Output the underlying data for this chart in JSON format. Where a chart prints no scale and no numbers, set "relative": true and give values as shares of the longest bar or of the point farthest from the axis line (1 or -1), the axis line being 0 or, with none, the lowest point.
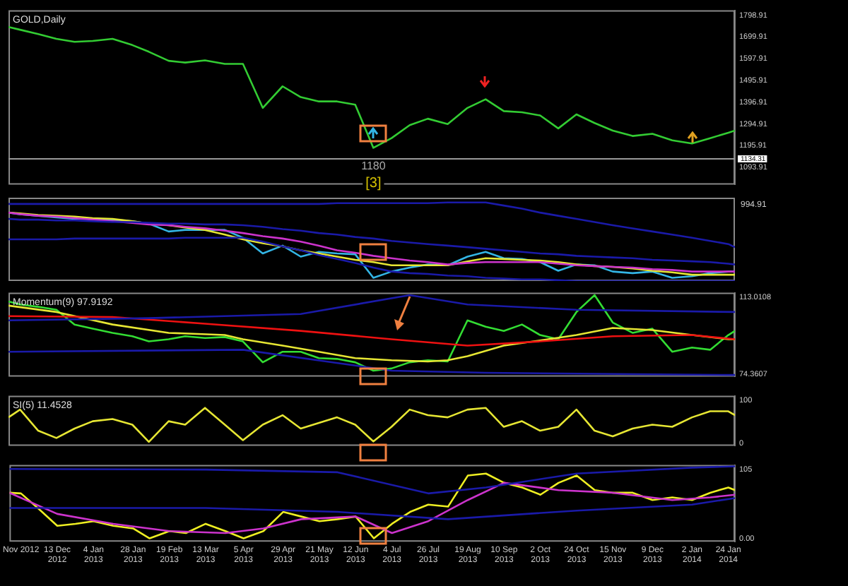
{
  "chart_data": [
    {
      "type": "line",
      "title": "GOLD,Daily",
      "x": [
        "2012-11-14",
        "2012-11-21",
        "2012-12-02",
        "2012-12-13",
        "2012-12-24",
        "2013-01-04",
        "2013-01-16",
        "2013-01-28",
        "2013-02-07",
        "2013-02-19",
        "2013-03-01",
        "2013-03-13",
        "2013-03-25",
        "2013-04-05",
        "2013-04-17",
        "2013-04-29",
        "2013-05-10",
        "2013-05-21",
        "2013-06-01",
        "2013-06-12",
        "2013-06-23",
        "2013-07-04",
        "2013-07-15",
        "2013-07-26",
        "2013-08-07",
        "2013-08-19",
        "2013-08-30",
        "2013-09-10",
        "2013-09-21",
        "2013-10-02",
        "2013-10-13",
        "2013-10-24",
        "2013-11-04",
        "2013-11-15",
        "2013-11-27",
        "2013-12-09",
        "2013-12-21",
        "2014-01-02",
        "2014-01-13",
        "2014-01-24",
        "2014-01-28"
      ],
      "series": [
        {
          "color": "#33cc33",
          "values": [
            1745,
            1732,
            1712,
            1690,
            1676,
            1680,
            1690,
            1661,
            1630,
            1588,
            1580,
            1590,
            1574,
            1574,
            1370,
            1470,
            1420,
            1400,
            1400,
            1385,
            1185,
            1230,
            1290,
            1320,
            1295,
            1370,
            1410,
            1355,
            1350,
            1335,
            1275,
            1340,
            1300,
            1265,
            1240,
            1250,
            1220,
            1205,
            1230,
            1255,
            1265
          ]
        }
      ],
      "xlim": [
        "2012-11-14",
        "2014-01-28"
      ],
      "ylim": [
        1015,
        1822
      ],
      "yticks": [
        1798.91,
        1699.91,
        1597.91,
        1495.91,
        1396.91,
        1294.91,
        1195.91,
        1093.91
      ],
      "ref_lines": [
        {
          "axis": "y",
          "value": 1134.31,
          "label": "1134.31"
        }
      ],
      "annotations": [
        "1180",
        "[3]"
      ],
      "tick_labels": "y",
      "marker": "none",
      "grid": false,
      "legend": false
    },
    {
      "type": "line",
      "relative": true,
      "annotations": [
        "994.91"
      ],
      "x": [
        "2012-11-14",
        "2012-11-21",
        "2012-12-02",
        "2012-12-13",
        "2012-12-24",
        "2013-01-04",
        "2013-01-16",
        "2013-01-28",
        "2013-02-07",
        "2013-02-19",
        "2013-03-01",
        "2013-03-13",
        "2013-03-25",
        "2013-04-05",
        "2013-04-17",
        "2013-04-29",
        "2013-05-10",
        "2013-05-21",
        "2013-06-01",
        "2013-06-12",
        "2013-06-23",
        "2013-07-04",
        "2013-07-15",
        "2013-07-26",
        "2013-08-07",
        "2013-08-19",
        "2013-08-30",
        "2013-09-10",
        "2013-09-21",
        "2013-10-02",
        "2013-10-13",
        "2013-10-24",
        "2013-11-04",
        "2013-11-15",
        "2013-11-27",
        "2013-12-09",
        "2013-12-21",
        "2014-01-02",
        "2014-01-13",
        "2014-01-24",
        "2014-01-28"
      ],
      "series": [
        {
          "color": "#1a1aa8",
          "values": [
            0.98,
            0.98,
            0.98,
            0.98,
            0.98,
            0.98,
            0.98,
            0.98,
            0.98,
            0.98,
            0.98,
            0.98,
            0.98,
            0.98,
            0.98,
            0.98,
            0.98,
            0.98,
            0.99,
            0.99,
            0.99,
            0.99,
            0.99,
            0.99,
            1,
            1,
            1,
            0.96,
            0.92,
            0.87,
            0.83,
            0.79,
            0.75,
            0.71,
            0.67,
            0.63,
            0.59,
            0.55,
            0.51,
            0.47,
            0.43
          ]
        },
        {
          "color": "#1a1aa8",
          "values": [
            0.79,
            0.78,
            0.78,
            0.77,
            0.77,
            0.76,
            0.75,
            0.75,
            0.74,
            0.73,
            0.73,
            0.72,
            0.72,
            0.71,
            0.69,
            0.66,
            0.64,
            0.61,
            0.59,
            0.56,
            0.54,
            0.51,
            0.49,
            0.47,
            0.45,
            0.43,
            0.41,
            0.39,
            0.37,
            0.35,
            0.34,
            0.32,
            0.31,
            0.3,
            0.29,
            0.27,
            0.26,
            0.25,
            0.24,
            0.22,
            0.21
          ]
        },
        {
          "color": "#1a1aa8",
          "values": [
            0.53,
            0.53,
            0.53,
            0.53,
            0.54,
            0.54,
            0.54,
            0.54,
            0.54,
            0.54,
            0.55,
            0.55,
            0.55,
            0.55,
            0.5,
            0.44,
            0.39,
            0.33,
            0.28,
            0.23,
            0.17,
            0.12,
            0.1,
            0.09,
            0.07,
            0.06,
            0.04,
            0.03,
            0.02,
            0.02,
            0.01,
            0,
            0,
            0,
            0,
            0,
            0,
            0,
            0,
            0,
            0
          ]
        },
        {
          "color": "#cc33cc",
          "values": [
            0.87,
            0.85,
            0.83,
            0.82,
            0.8,
            0.78,
            0.76,
            0.74,
            0.72,
            0.71,
            0.69,
            0.67,
            0.64,
            0.61,
            0.57,
            0.54,
            0.5,
            0.45,
            0.39,
            0.36,
            0.32,
            0.29,
            0.26,
            0.24,
            0.21,
            0.23,
            0.24,
            0.24,
            0.24,
            0.24,
            0.22,
            0.2,
            0.19,
            0.18,
            0.17,
            0.15,
            0.14,
            0.12,
            0.12,
            0.12,
            0.12
          ]
        },
        {
          "color": "#e6e633",
          "values": [
            0.87,
            0.86,
            0.84,
            0.83,
            0.82,
            0.8,
            0.79,
            0.76,
            0.73,
            0.71,
            0.68,
            0.65,
            0.59,
            0.53,
            0.48,
            0.44,
            0.39,
            0.35,
            0.31,
            0.27,
            0.24,
            0.2,
            0.2,
            0.2,
            0.2,
            0.25,
            0.29,
            0.28,
            0.27,
            0.26,
            0.24,
            0.21,
            0.19,
            0.18,
            0.16,
            0.13,
            0.11,
            0.08,
            0.08,
            0.08,
            0.08
          ]
        },
        {
          "color": "#33b5e5",
          "values": [
            0.87,
            0.85,
            0.83,
            0.81,
            0.79,
            0.79,
            0.78,
            0.76,
            0.73,
            0.63,
            0.65,
            0.65,
            0.65,
            0.55,
            0.35,
            0.45,
            0.31,
            0.37,
            0.35,
            0.34,
            0.04,
            0.12,
            0.17,
            0.21,
            0.2,
            0.31,
            0.37,
            0.29,
            0.28,
            0.24,
            0.13,
            0.21,
            0.2,
            0.12,
            0.1,
            0.12,
            0.04,
            0.06,
            0.1,
            0.12,
            0.12
          ]
        }
      ],
      "xlim": [
        "2012-11-14",
        "2014-01-28"
      ],
      "tick_labels": false,
      "marker": "none",
      "grid": false,
      "legend": false
    },
    {
      "type": "line",
      "title": "Momentum(9) 97.9192",
      "x": [
        "2012-11-14",
        "2012-11-21",
        "2012-12-02",
        "2012-12-13",
        "2012-12-24",
        "2013-01-04",
        "2013-01-16",
        "2013-01-28",
        "2013-02-07",
        "2013-02-19",
        "2013-03-01",
        "2013-03-13",
        "2013-03-25",
        "2013-04-05",
        "2013-04-17",
        "2013-04-29",
        "2013-05-10",
        "2013-05-21",
        "2013-06-01",
        "2013-06-12",
        "2013-06-23",
        "2013-07-04",
        "2013-07-15",
        "2013-07-26",
        "2013-08-07",
        "2013-08-19",
        "2013-08-30",
        "2013-09-10",
        "2013-09-21",
        "2013-10-02",
        "2013-10-13",
        "2013-10-24",
        "2013-11-04",
        "2013-11-15",
        "2013-11-27",
        "2013-12-09",
        "2013-12-21",
        "2014-01-02",
        "2014-01-13",
        "2014-01-24",
        "2014-01-28"
      ],
      "series": [
        {
          "color": "#1a1aa8",
          "x": [
            "2012-11-14",
            "2013-02-07",
            "2013-05-10",
            "2013-07-15",
            "2013-08-19",
            "2013-10-24",
            "2014-01-28"
          ],
          "values": [
            101.4,
            102.5,
            104.6,
            114.1,
            109.4,
            106.7,
            105.6
          ]
        },
        {
          "color": "#1a1aa8",
          "x": [
            "2012-11-14",
            "2013-04-05",
            "2013-07-04",
            "2013-08-30",
            "2014-01-28"
          ],
          "values": [
            85.6,
            86.6,
            76.1,
            75.0,
            73.9
          ]
        },
        {
          "color": "#ee1111",
          "x": [
            "2012-11-14",
            "2013-01-16",
            "2013-03-13",
            "2013-05-10",
            "2013-07-04",
            "2013-08-19",
            "2013-10-02",
            "2013-11-15",
            "2014-01-02",
            "2014-01-28"
          ],
          "values": [
            103.5,
            103.1,
            99.7,
            96.1,
            91.9,
            88.7,
            90.8,
            93.4,
            94.0,
            91.9
          ]
        },
        {
          "color": "#e6e633",
          "x": [
            "2012-11-14",
            "2012-12-13",
            "2013-01-16",
            "2013-02-19",
            "2013-03-25",
            "2013-04-05",
            "2013-04-29",
            "2013-05-21",
            "2013-06-12",
            "2013-07-04",
            "2013-07-26",
            "2013-08-07",
            "2013-08-19",
            "2013-09-10",
            "2013-10-02",
            "2013-10-24",
            "2013-11-15",
            "2013-12-09",
            "2014-01-02",
            "2014-01-24",
            "2014-01-28"
          ],
          "values": [
            108.8,
            105.6,
            99.3,
            95.1,
            94.0,
            91.9,
            88.7,
            85.6,
            82.4,
            81.3,
            80.7,
            81.3,
            83.4,
            88.7,
            91.3,
            94.0,
            97.6,
            96.5,
            94.0,
            91.9,
            91.9
          ]
        },
        {
          "color": "#33dd33",
          "values": [
            110.9,
            109.4,
            108.2,
            106.7,
            99.3,
            97.2,
            95.1,
            93.4,
            90.8,
            91.9,
            93.4,
            92.5,
            93.0,
            90.8,
            80.3,
            85.6,
            85.6,
            82.4,
            82.0,
            80.3,
            76.1,
            77.2,
            80.3,
            81.3,
            80.7,
            101.4,
            98.2,
            96.1,
            99.3,
            94.0,
            91.9,
            105.6,
            114.1,
            100.3,
            95.1,
            97.2,
            85.6,
            87.7,
            86.6,
            94.0,
            96.1
          ]
        }
      ],
      "xlim": [
        "2012-11-14",
        "2014-01-28"
      ],
      "ylim": [
        73.1,
        115.3
      ],
      "yticks": [
        113.0108,
        74.3607
      ],
      "tick_labels": "y",
      "marker": "none",
      "grid": false,
      "legend": false
    },
    {
      "type": "line",
      "title": "SI(5) 11.4528",
      "x": [
        "2012-11-14",
        "2012-11-21",
        "2012-12-02",
        "2012-12-13",
        "2012-12-24",
        "2013-01-04",
        "2013-01-16",
        "2013-01-28",
        "2013-02-07",
        "2013-02-19",
        "2013-03-01",
        "2013-03-13",
        "2013-03-25",
        "2013-04-05",
        "2013-04-17",
        "2013-04-29",
        "2013-05-10",
        "2013-05-21",
        "2013-06-01",
        "2013-06-12",
        "2013-06-23",
        "2013-07-04",
        "2013-07-15",
        "2013-07-26",
        "2013-08-07",
        "2013-08-19",
        "2013-08-30",
        "2013-09-10",
        "2013-09-21",
        "2013-10-02",
        "2013-10-13",
        "2013-10-24",
        "2013-11-04",
        "2013-11-15",
        "2013-11-27",
        "2013-12-09",
        "2013-12-21",
        "2014-01-02",
        "2014-01-13",
        "2014-01-24",
        "2014-01-28"
      ],
      "series": [
        {
          "color": "#e6e633",
          "values": [
            60,
            78,
            29,
            12,
            34,
            51,
            56,
            43,
            3,
            51,
            43,
            82,
            43,
            7,
            43,
            65,
            34,
            47,
            60,
            43,
            4,
            38,
            78,
            65,
            60,
            78,
            82,
            38,
            51,
            29,
            38,
            78,
            29,
            16,
            34,
            43,
            38,
            60,
            74,
            74,
            65
          ]
        }
      ],
      "xlim": [
        "2012-11-14",
        "2014-01-28"
      ],
      "ylim": [
        -6,
        110
      ],
      "yticks": [
        100,
        0
      ],
      "tick_labels": "y",
      "marker": "none",
      "grid": false,
      "legend": false
    },
    {
      "type": "line",
      "x": [
        "2012-11-14",
        "2012-11-21",
        "2012-12-02",
        "2012-12-13",
        "2012-12-24",
        "2013-01-04",
        "2013-01-16",
        "2013-01-28",
        "2013-02-07",
        "2013-02-19",
        "2013-03-01",
        "2013-03-13",
        "2013-03-25",
        "2013-04-05",
        "2013-04-17",
        "2013-04-29",
        "2013-05-10",
        "2013-05-21",
        "2013-06-01",
        "2013-06-12",
        "2013-06-23",
        "2013-07-04",
        "2013-07-15",
        "2013-07-26",
        "2013-08-07",
        "2013-08-19",
        "2013-08-30",
        "2013-09-10",
        "2013-09-21",
        "2013-10-02",
        "2013-10-13",
        "2013-10-24",
        "2013-11-04",
        "2013-11-15",
        "2013-11-27",
        "2013-12-09",
        "2013-12-21",
        "2014-01-02",
        "2014-01-13",
        "2014-01-24",
        "2014-01-28"
      ],
      "series": [
        {
          "color": "#1a1aa8",
          "x": [
            "2012-11-14",
            "2013-03-13",
            "2013-06-01",
            "2013-07-26",
            "2013-08-30",
            "2013-10-24",
            "2014-01-02",
            "2014-01-28"
          ],
          "values": [
            106,
            105,
            101,
            69,
            78,
            99,
            108,
            110
          ]
        },
        {
          "color": "#1a1aa8",
          "x": [
            "2012-11-14",
            "2013-03-13",
            "2013-06-01",
            "2013-08-07",
            "2013-10-24",
            "2014-01-02",
            "2014-01-28"
          ],
          "values": [
            47,
            47,
            41,
            30,
            43,
            52,
            62
          ]
        },
        {
          "color": "#cc33cc",
          "x": [
            "2012-11-14",
            "2012-12-13",
            "2013-01-16",
            "2013-02-19",
            "2013-03-25",
            "2013-04-17",
            "2013-05-10",
            "2013-06-12",
            "2013-07-04",
            "2013-07-26",
            "2013-08-19",
            "2013-09-10",
            "2013-10-13",
            "2013-11-15",
            "2013-12-21",
            "2014-01-13",
            "2014-01-28"
          ],
          "values": [
            70,
            38,
            23,
            12,
            9,
            16,
            30,
            34,
            9,
            27,
            59,
            85,
            74,
            70,
            59,
            63,
            67
          ]
        },
        {
          "color": "#eeee22",
          "values": [
            70,
            69,
            45,
            20,
            23,
            27,
            20,
            16,
            1,
            12,
            9,
            23,
            12,
            1,
            12,
            41,
            34,
            27,
            30,
            34,
            1,
            23,
            41,
            52,
            49,
            96,
            99,
            85,
            78,
            67,
            85,
            96,
            74,
            70,
            70,
            59,
            63,
            59,
            70,
            78,
            74
          ]
        }
      ],
      "xlim": [
        "2012-11-14",
        "2014-01-28"
      ],
      "ylim": [
        -4,
        112
      ],
      "yticks": [
        105,
        {
          "value": 0,
          "label": "0.00"
        }
      ],
      "xticks": [
        {
          "value": "2012-11-21",
          "label": "Nov 2012"
        },
        {
          "value": "2012-12-13",
          "label": "13 Dec 2012"
        },
        {
          "value": "2013-01-04",
          "label": "4 Jan 2013"
        },
        {
          "value": "2013-01-28",
          "label": "28 Jan 2013"
        },
        {
          "value": "2013-02-19",
          "label": "19 Feb 2013"
        },
        {
          "value": "2013-03-13",
          "label": "13 Mar 2013"
        },
        {
          "value": "2013-04-05",
          "label": "5 Apr 2013"
        },
        {
          "value": "2013-04-29",
          "label": "29 Apr 2013"
        },
        {
          "value": "2013-05-21",
          "label": "21 May 2013"
        },
        {
          "value": "2013-06-12",
          "label": "12 Jun 2013"
        },
        {
          "value": "2013-07-04",
          "label": "4 Jul 2013"
        },
        {
          "value": "2013-07-26",
          "label": "26 Jul 2013"
        },
        {
          "value": "2013-08-19",
          "label": "19 Aug 2013"
        },
        {
          "value": "2013-09-10",
          "label": "10 Sep 2013"
        },
        {
          "value": "2013-10-02",
          "label": "2 Oct 2013"
        },
        {
          "value": "2013-10-24",
          "label": "24 Oct 2013"
        },
        {
          "value": "2013-11-15",
          "label": "15 Nov 2013"
        },
        {
          "value": "2013-12-09",
          "label": "9 Dec 2013"
        },
        {
          "value": "2014-01-02",
          "label": "2 Jan 2014"
        },
        {
          "value": "2014-01-24",
          "label": "24 Jan 2014"
        }
      ],
      "marker": "none",
      "grid": false,
      "legend": false
    }
  ]
}
